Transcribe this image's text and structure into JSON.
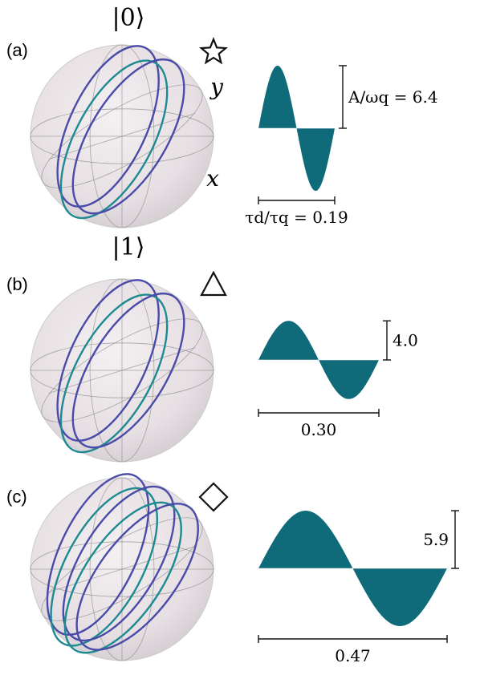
{
  "panels": [
    {
      "label": "(a)",
      "top_state": "|0⟩",
      "bottom_state": "|1⟩",
      "y_axis": "y",
      "x_axis": "x",
      "marker": "star",
      "amplitude": {
        "value": 6.4,
        "label": "A/ωq = 6.4"
      },
      "duration": {
        "value": 0.19,
        "label": "τd/τq = 0.19"
      }
    },
    {
      "label": "(b)",
      "marker": "triangle",
      "amplitude": {
        "value": 4,
        "label": "4.0"
      },
      "duration": {
        "value": 0.3,
        "label": "0.30"
      }
    },
    {
      "label": "(c)",
      "marker": "diamond",
      "amplitude": 5.9,
      "duration": 0.47
    }
  ]
}
